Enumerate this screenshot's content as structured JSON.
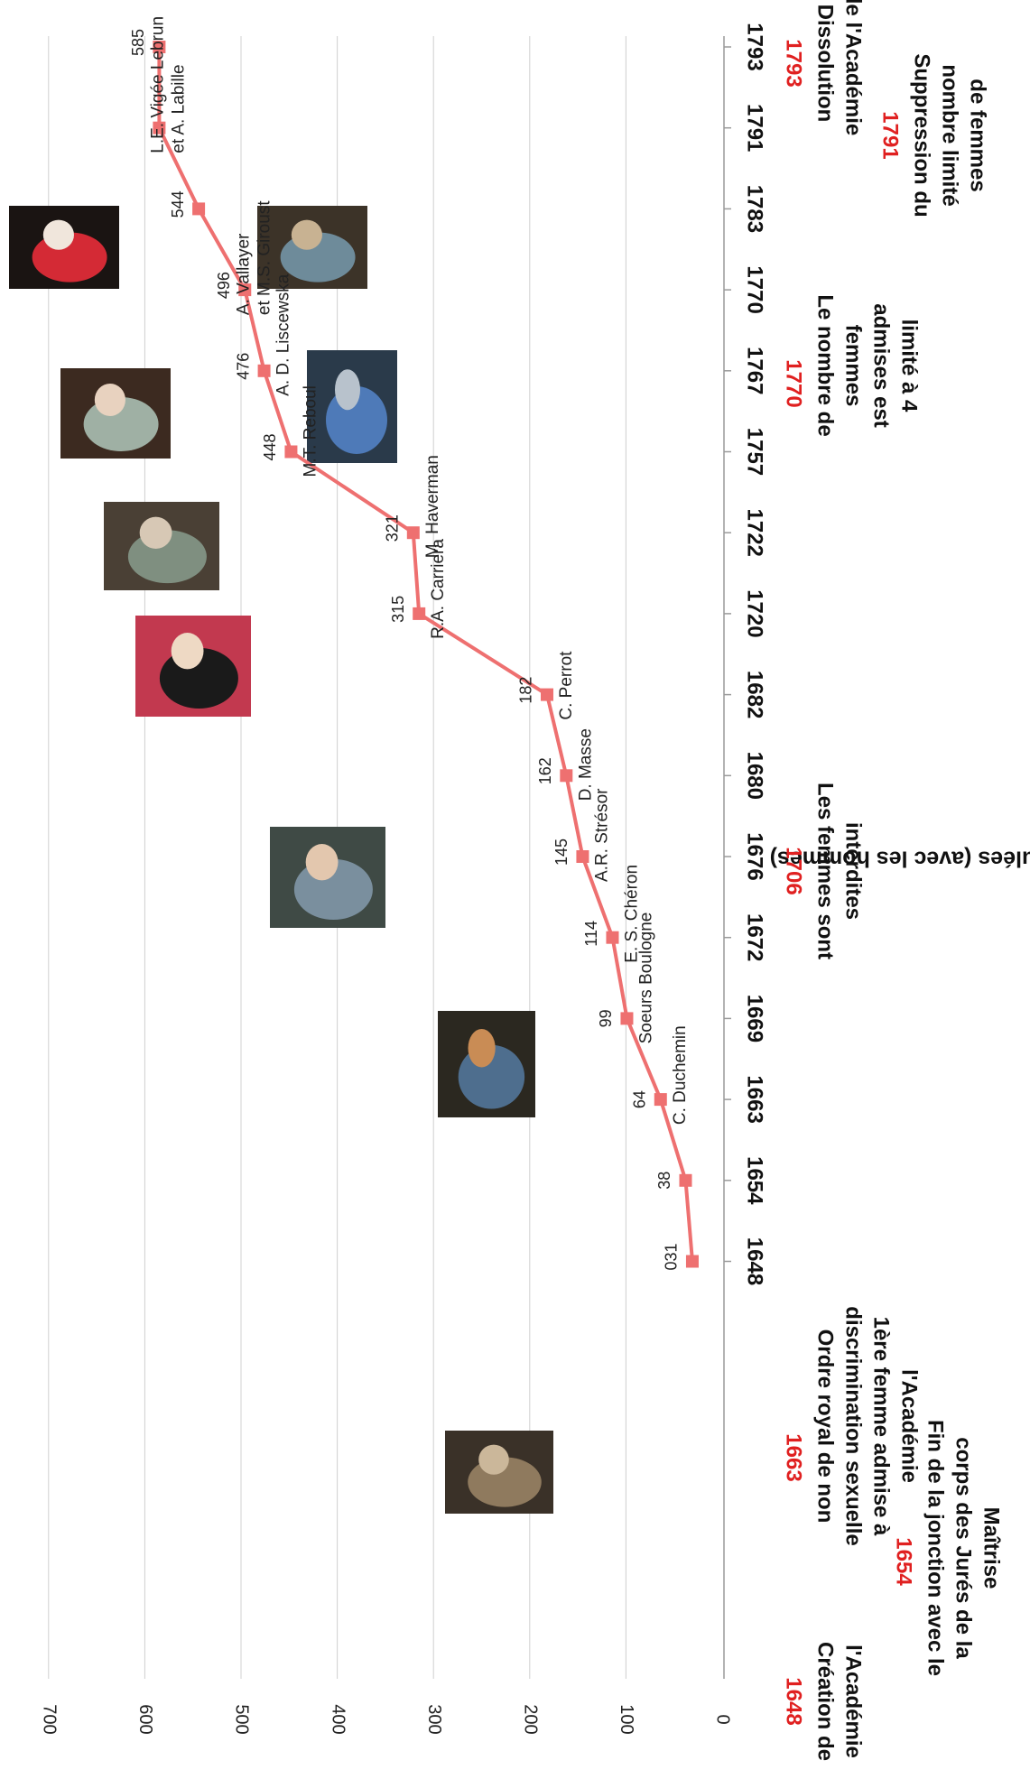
{
  "chart_data": {
    "type": "line",
    "ylabel": "Admissions cumulées (avec les hommes)",
    "ylim": [
      0,
      700
    ],
    "yticks": [
      0,
      100,
      200,
      300,
      400,
      500,
      600,
      700
    ],
    "grid": true,
    "series_color": "#ee7070",
    "categories": [
      "1648",
      "1654",
      "1663",
      "1669",
      "1672",
      "1676",
      "1680",
      "1682",
      "1720",
      "1722",
      "1757",
      "1767",
      "1770",
      "1783",
      "1791",
      "1793"
    ],
    "values": [
      31,
      38,
      64,
      99,
      114,
      145,
      162,
      182,
      315,
      321,
      448,
      476,
      496,
      544,
      585,
      585
    ],
    "value_labels": [
      "031",
      "38",
      "64",
      "99",
      "114",
      "145",
      "162",
      "182",
      "315",
      "321",
      "448",
      "476",
      "496",
      "544",
      "",
      "585"
    ],
    "point_names": [
      {
        "index": 2,
        "lines": [
          "C. Duchemin"
        ]
      },
      {
        "index": 3,
        "lines": [
          "Soeurs Boulogne"
        ]
      },
      {
        "index": 4,
        "lines": [
          "E. S. Chéron"
        ]
      },
      {
        "index": 5,
        "lines": [
          "A.R. Strésor"
        ]
      },
      {
        "index": 6,
        "lines": [
          "D. Masse"
        ]
      },
      {
        "index": 7,
        "lines": [
          "C. Perrot"
        ]
      },
      {
        "index": 8,
        "lines": [
          "R.A. Carriera"
        ]
      },
      {
        "index": 9,
        "lines": [
          "M. Haverman"
        ]
      },
      {
        "index": 10,
        "lines": [
          "M.T. Reboul"
        ]
      },
      {
        "index": 11,
        "lines": [
          "A. D. Liscewska"
        ]
      },
      {
        "index": 12,
        "lines": [
          "A. Vallayer",
          "et M.S. Giroust"
        ]
      },
      {
        "index": 14,
        "lines": [
          "L.E. Vigée Lebrun",
          "et A. Labille"
        ]
      }
    ],
    "events": [
      {
        "year": "1648",
        "lines": [
          "Création  de",
          "l'Académie"
        ]
      },
      {
        "year": "1654",
        "lines": [
          "Fin de la jonction avec le",
          "corps des Jurés de la",
          "Maîtrise"
        ]
      },
      {
        "year": "1663",
        "lines": [
          "Ordre royal de non",
          "discrimination sexuelle",
          "1ère femme admise à",
          "l'Académie"
        ]
      },
      {
        "year": "1706",
        "lines": [
          "Les femmes sont",
          "interdites"
        ]
      },
      {
        "year": "1770",
        "lines": [
          "Le nombre de",
          "femmes",
          "admises est",
          "limité à 4"
        ]
      },
      {
        "year": "1791",
        "lines": [
          "Suppression du",
          "nombre limité",
          "de femmes"
        ]
      },
      {
        "year": "1793",
        "lines": [
          "Dissolution",
          "de l'Académie"
        ]
      }
    ]
  },
  "portraits": [
    {
      "name": "portrait-duchemin-image",
      "colors": [
        "#3a3128",
        "#8f7a5e",
        "#cbb79a"
      ]
    },
    {
      "name": "portrait-cheron-image",
      "colors": [
        "#2b2820",
        "#4e6e8e",
        "#c98c55"
      ]
    },
    {
      "name": "portrait-carriera-image",
      "colors": [
        "#3f4a45",
        "#7a8f9e",
        "#e3c7ae"
      ]
    },
    {
      "name": "portrait-reboul-image",
      "colors": [
        "#c2394f",
        "#1a1a1a",
        "#eed9c4"
      ]
    },
    {
      "name": "portrait-liscewska-image",
      "colors": [
        "#4a4035",
        "#7f8f80",
        "#d7c8b5"
      ]
    },
    {
      "name": "portrait-vallayer-image",
      "colors": [
        "#3c2a20",
        "#9fb0a4",
        "#e8d2bf"
      ]
    },
    {
      "name": "portrait-giroust-image",
      "colors": [
        "#2a3a4a",
        "#4e7ab8",
        "#b8c2cc"
      ]
    },
    {
      "name": "portrait-vigee-lebrun-image",
      "colors": [
        "#1a1412",
        "#d42a35",
        "#f0e6dc"
      ]
    },
    {
      "name": "portrait-labille-image",
      "colors": [
        "#3c3328",
        "#6e8b9a",
        "#c8b292"
      ]
    }
  ]
}
